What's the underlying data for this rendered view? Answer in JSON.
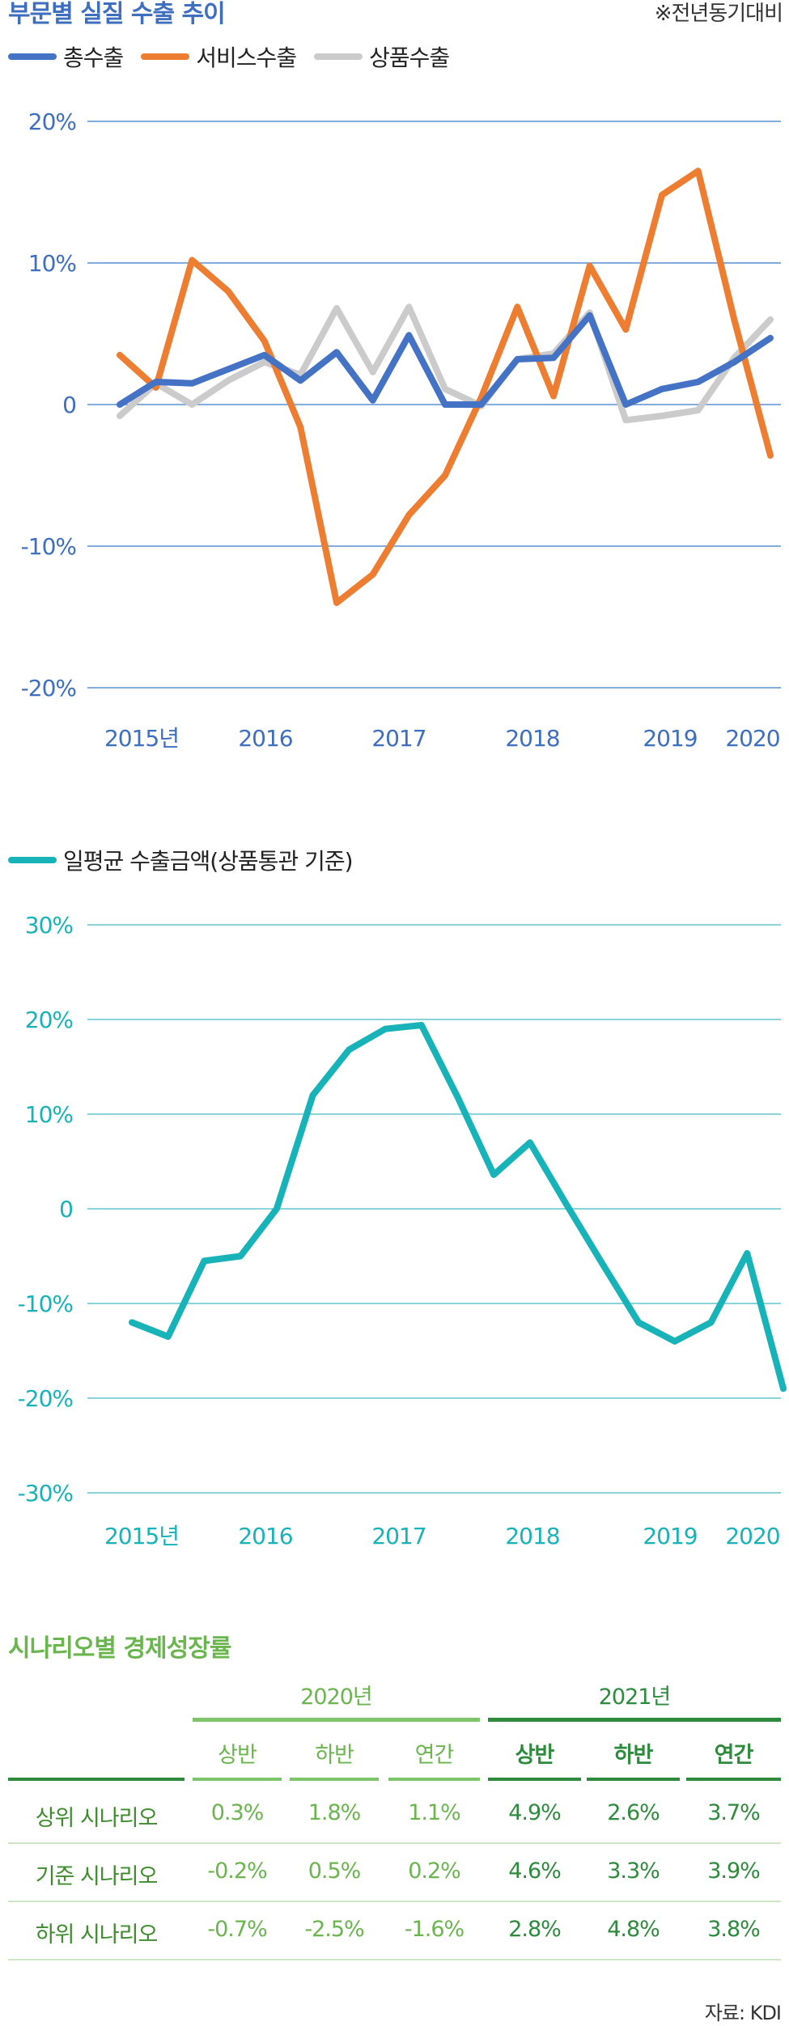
{
  "chart1": {
    "title": "부문별 실질 수출 추이",
    "note": "※전년동기대비",
    "legend": [
      "총수출",
      "서비스수출",
      "상품수출"
    ]
  },
  "chart2": {
    "legend": "일평균 수출금액(상품통관 기준)"
  },
  "table": {
    "title": "시나리오별 경제성장률",
    "years": [
      "2020년",
      "2021년"
    ],
    "subheads": [
      "상반",
      "하반",
      "연간",
      "상반",
      "하반",
      "연간"
    ],
    "rows": [
      {
        "label": "상위 시나리오",
        "values": [
          "0.3%",
          "1.8%",
          "1.1%",
          "4.9%",
          "2.6%",
          "3.7%"
        ]
      },
      {
        "label": "기준 시나리오",
        "values": [
          "-0.2%",
          "0.5%",
          "0.2%",
          "4.6%",
          "3.3%",
          "3.9%"
        ]
      },
      {
        "label": "하위 시나리오",
        "values": [
          "-0.7%",
          "-2.5%",
          "-1.6%",
          "2.8%",
          "4.8%",
          "3.8%"
        ]
      }
    ],
    "source": "자료: KDI"
  },
  "colors": {
    "blue": "#4472c4",
    "orange": "#ed7d31",
    "gray": "#cbcbcb",
    "teal": "#18b2b9",
    "gridBlue": "#5b8fd4",
    "gridTeal": "#62c6cc",
    "green": "#2e8b3e",
    "lightGreen": "#7ec46a"
  },
  "chart_data": [
    {
      "type": "line",
      "title": "부문별 실질 수출 추이",
      "xlabel": "",
      "ylabel": "",
      "x_ticks": [
        "2015년",
        "2016",
        "2017",
        "2018",
        "2019",
        "2020"
      ],
      "y_ticks": [
        "20%",
        "10%",
        "0",
        "-10%",
        "-20%"
      ],
      "ylim": [
        -20,
        20
      ],
      "legend_position": "top-left",
      "series": [
        {
          "name": "총수출",
          "color": "#4472c4",
          "values": [
            0,
            1.6,
            1.5,
            2.5,
            3.5,
            1.7,
            3.7,
            0.3,
            4.9,
            0,
            0,
            3.2,
            3.3,
            6.3,
            0,
            1.1,
            1.6,
            3.0,
            4.7
          ]
        },
        {
          "name": "서비스수출",
          "color": "#ed7d31",
          "values": [
            3.5,
            1.2,
            10.2,
            8.0,
            4.5,
            -1.6,
            -14.0,
            -12.0,
            -7.8,
            -5.0,
            0.5,
            6.9,
            0.6,
            9.8,
            5.3,
            14.8,
            16.5,
            6.0,
            -3.6
          ]
        },
        {
          "name": "상품수출",
          "color": "#cbcbcb",
          "values": [
            -0.8,
            1.5,
            0,
            1.7,
            3.0,
            2.1,
            6.8,
            2.3,
            6.9,
            1.1,
            -0.1,
            3.2,
            3.6,
            6.5,
            -1.1,
            -0.8,
            -0.4,
            3.3,
            6.0
          ]
        }
      ]
    },
    {
      "type": "line",
      "title": "",
      "xlabel": "",
      "ylabel": "",
      "x_ticks": [
        "2015년",
        "2016",
        "2017",
        "2018",
        "2019",
        "2020"
      ],
      "y_ticks": [
        "30%",
        "20%",
        "10%",
        "0",
        "-10%",
        "-20%",
        "-30%"
      ],
      "ylim": [
        -30,
        30
      ],
      "legend_position": "top-left",
      "series": [
        {
          "name": "일평균 수출금액(상품통관 기준)",
          "color": "#18b2b9",
          "values": [
            -12,
            -13.5,
            -5.5,
            -5,
            0,
            12,
            16.8,
            19,
            19.4,
            11.8,
            3.6,
            7,
            0.5,
            -5.8,
            -12,
            -14,
            -12,
            -4.7,
            -19
          ]
        }
      ]
    }
  ]
}
